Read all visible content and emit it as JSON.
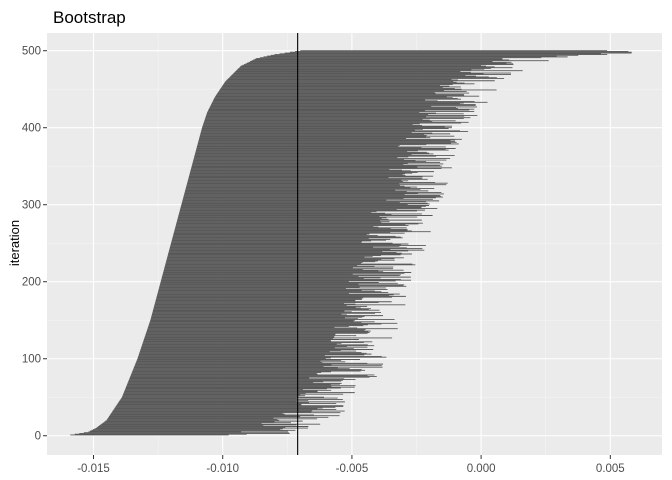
{
  "chart_data": {
    "type": "interval",
    "title": "Bootstrap",
    "xlabel": "",
    "ylabel": "iteration",
    "xlim": [
      -0.0168,
      0.007
    ],
    "ylim": [
      -25,
      523
    ],
    "x_ticks": [
      -0.015,
      -0.01,
      -0.005,
      0.0,
      0.005
    ],
    "x_tick_labels": [
      "-0.015",
      "-0.010",
      "-0.005",
      "0.000",
      "0.005"
    ],
    "y_ticks": [
      0,
      100,
      200,
      300,
      400,
      500
    ],
    "y_tick_labels": [
      "0",
      "100",
      "200",
      "300",
      "400",
      "500"
    ],
    "reference_line_x": -0.0071,
    "n_iterations": 500,
    "lower_bound_profile": [
      [
        1,
        -0.0159
      ],
      [
        5,
        -0.0152
      ],
      [
        10,
        -0.0149
      ],
      [
        20,
        -0.0145
      ],
      [
        50,
        -0.0139
      ],
      [
        100,
        -0.0133
      ],
      [
        150,
        -0.0128
      ],
      [
        200,
        -0.0124
      ],
      [
        250,
        -0.012
      ],
      [
        300,
        -0.0116
      ],
      [
        350,
        -0.0112
      ],
      [
        400,
        -0.0108
      ],
      [
        420,
        -0.0106
      ],
      [
        440,
        -0.0103
      ],
      [
        460,
        -0.0099
      ],
      [
        470,
        -0.0096
      ],
      [
        480,
        -0.0093
      ],
      [
        490,
        -0.0087
      ],
      [
        495,
        -0.008
      ],
      [
        500,
        -0.007
      ]
    ],
    "upper_bound_profile": [
      [
        1,
        -0.0086
      ],
      [
        20,
        -0.007
      ],
      [
        50,
        -0.006
      ],
      [
        100,
        -0.005
      ],
      [
        150,
        -0.0045
      ],
      [
        200,
        -0.004
      ],
      [
        250,
        -0.0035
      ],
      [
        300,
        -0.003
      ],
      [
        350,
        -0.0025
      ],
      [
        400,
        -0.0017
      ],
      [
        440,
        -0.001
      ],
      [
        470,
        -0.0002
      ],
      [
        490,
        0.0018
      ],
      [
        500,
        0.0058
      ]
    ],
    "colors": {
      "panel": "#ebebeb",
      "grid_major": "#ffffff",
      "grid_minor": "#f5f5f5",
      "interval": "#595959",
      "reference_line": "#000000"
    }
  }
}
